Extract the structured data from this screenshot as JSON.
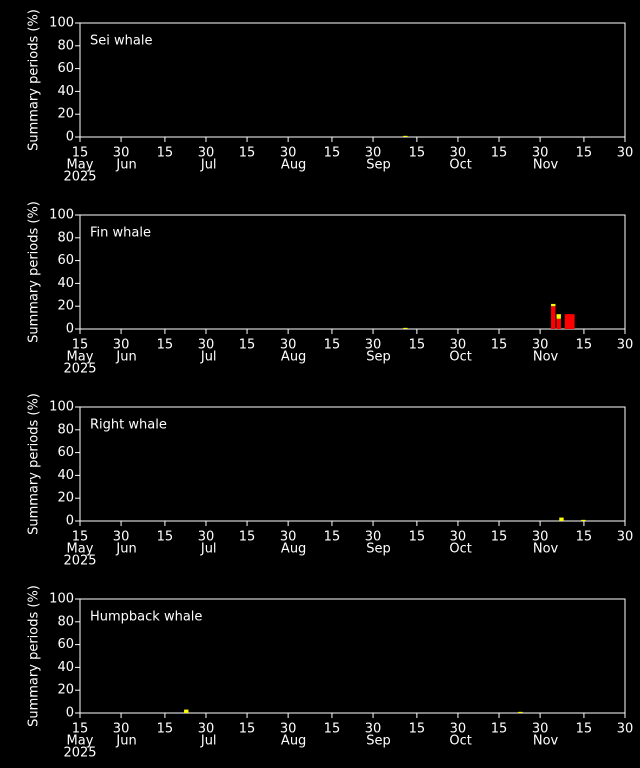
{
  "chart_data": [
    {
      "type": "bar",
      "title": "Sei whale",
      "ylabel": "Summary periods (%)",
      "year_label": "2025",
      "stacked": true,
      "x": [
        "2025-09-10"
      ],
      "series": [
        {
          "color": "#ff0000",
          "values": [
            0
          ]
        },
        {
          "color": "#ffff00",
          "values": [
            1
          ]
        }
      ],
      "xlim": [
        "2025-05-15",
        "2025-11-30"
      ],
      "xticks": [
        {
          "value": "2025-05-15",
          "label": "15"
        },
        {
          "value": "2025-05-30",
          "label": "30"
        },
        {
          "value": "2025-06-15",
          "label": "15"
        },
        {
          "value": "2025-06-30",
          "label": "30"
        },
        {
          "value": "2025-07-15",
          "label": "15"
        },
        {
          "value": "2025-07-30",
          "label": "30"
        },
        {
          "value": "2025-08-15",
          "label": "15"
        },
        {
          "value": "2025-08-30",
          "label": "30"
        },
        {
          "value": "2025-09-15",
          "label": "15"
        },
        {
          "value": "2025-09-30",
          "label": "30"
        },
        {
          "value": "2025-10-15",
          "label": "15"
        },
        {
          "value": "2025-10-30",
          "label": "30"
        },
        {
          "value": "2025-11-15",
          "label": "15"
        },
        {
          "value": "2025-11-30",
          "label": "30"
        }
      ],
      "month_labels": [
        {
          "value": "2025-05-15",
          "label": "May"
        },
        {
          "value": "2025-06-01",
          "label": "Jun"
        },
        {
          "value": "2025-07-01",
          "label": "Jul"
        },
        {
          "value": "2025-08-01",
          "label": "Aug"
        },
        {
          "value": "2025-09-01",
          "label": "Sep"
        },
        {
          "value": "2025-10-01",
          "label": "Oct"
        },
        {
          "value": "2025-11-01",
          "label": "Nov"
        }
      ],
      "ylim": [
        0,
        100
      ],
      "yticks": [
        0,
        20,
        40,
        60,
        80,
        100
      ]
    },
    {
      "type": "bar",
      "title": "Fin whale",
      "ylabel": "Summary periods (%)",
      "year_label": "2025",
      "stacked": true,
      "x": [
        "2025-09-10",
        "2025-11-03",
        "2025-11-05",
        "2025-11-08",
        "2025-11-09",
        "2025-11-10"
      ],
      "series": [
        {
          "color": "#ff0000",
          "values": [
            0,
            20,
            9,
            13,
            13,
            13
          ]
        },
        {
          "color": "#ffff00",
          "values": [
            1,
            2,
            4,
            0,
            0,
            0
          ]
        }
      ],
      "xlim": [
        "2025-05-15",
        "2025-11-30"
      ],
      "xticks": [
        {
          "value": "2025-05-15",
          "label": "15"
        },
        {
          "value": "2025-05-30",
          "label": "30"
        },
        {
          "value": "2025-06-15",
          "label": "15"
        },
        {
          "value": "2025-06-30",
          "label": "30"
        },
        {
          "value": "2025-07-15",
          "label": "15"
        },
        {
          "value": "2025-07-30",
          "label": "30"
        },
        {
          "value": "2025-08-15",
          "label": "15"
        },
        {
          "value": "2025-08-30",
          "label": "30"
        },
        {
          "value": "2025-09-15",
          "label": "15"
        },
        {
          "value": "2025-09-30",
          "label": "30"
        },
        {
          "value": "2025-10-15",
          "label": "15"
        },
        {
          "value": "2025-10-30",
          "label": "30"
        },
        {
          "value": "2025-11-15",
          "label": "15"
        },
        {
          "value": "2025-11-30",
          "label": "30"
        }
      ],
      "month_labels": [
        {
          "value": "2025-05-15",
          "label": "May"
        },
        {
          "value": "2025-06-01",
          "label": "Jun"
        },
        {
          "value": "2025-07-01",
          "label": "Jul"
        },
        {
          "value": "2025-08-01",
          "label": "Aug"
        },
        {
          "value": "2025-09-01",
          "label": "Sep"
        },
        {
          "value": "2025-10-01",
          "label": "Oct"
        },
        {
          "value": "2025-11-01",
          "label": "Nov"
        }
      ],
      "ylim": [
        0,
        100
      ],
      "yticks": [
        0,
        20,
        40,
        60,
        80,
        100
      ]
    },
    {
      "type": "bar",
      "title": "Right whale",
      "ylabel": "Summary periods (%)",
      "year_label": "2025",
      "stacked": true,
      "x": [
        "2025-11-06",
        "2025-11-14"
      ],
      "series": [
        {
          "color": "#ff0000",
          "values": [
            0,
            0
          ]
        },
        {
          "color": "#ffff00",
          "values": [
            3,
            1
          ]
        }
      ],
      "xlim": [
        "2025-05-15",
        "2025-11-30"
      ],
      "xticks": [
        {
          "value": "2025-05-15",
          "label": "15"
        },
        {
          "value": "2025-05-30",
          "label": "30"
        },
        {
          "value": "2025-06-15",
          "label": "15"
        },
        {
          "value": "2025-06-30",
          "label": "30"
        },
        {
          "value": "2025-07-15",
          "label": "15"
        },
        {
          "value": "2025-07-30",
          "label": "30"
        },
        {
          "value": "2025-08-15",
          "label": "15"
        },
        {
          "value": "2025-08-30",
          "label": "30"
        },
        {
          "value": "2025-09-15",
          "label": "15"
        },
        {
          "value": "2025-09-30",
          "label": "30"
        },
        {
          "value": "2025-10-15",
          "label": "15"
        },
        {
          "value": "2025-10-30",
          "label": "30"
        },
        {
          "value": "2025-11-15",
          "label": "15"
        },
        {
          "value": "2025-11-30",
          "label": "30"
        }
      ],
      "month_labels": [
        {
          "value": "2025-05-15",
          "label": "May"
        },
        {
          "value": "2025-06-01",
          "label": "Jun"
        },
        {
          "value": "2025-07-01",
          "label": "Jul"
        },
        {
          "value": "2025-08-01",
          "label": "Aug"
        },
        {
          "value": "2025-09-01",
          "label": "Sep"
        },
        {
          "value": "2025-10-01",
          "label": "Oct"
        },
        {
          "value": "2025-11-01",
          "label": "Nov"
        }
      ],
      "ylim": [
        0,
        100
      ],
      "yticks": [
        0,
        20,
        40,
        60,
        80,
        100
      ]
    },
    {
      "type": "bar",
      "title": "Humpback whale",
      "ylabel": "Summary periods (%)",
      "year_label": "2025",
      "stacked": true,
      "x": [
        "2025-06-22",
        "2025-10-22"
      ],
      "series": [
        {
          "color": "#ff0000",
          "values": [
            0,
            0
          ]
        },
        {
          "color": "#ffff00",
          "values": [
            3,
            1
          ]
        }
      ],
      "xlim": [
        "2025-05-15",
        "2025-11-30"
      ],
      "xticks": [
        {
          "value": "2025-05-15",
          "label": "15"
        },
        {
          "value": "2025-05-30",
          "label": "30"
        },
        {
          "value": "2025-06-15",
          "label": "15"
        },
        {
          "value": "2025-06-30",
          "label": "30"
        },
        {
          "value": "2025-07-15",
          "label": "15"
        },
        {
          "value": "2025-07-30",
          "label": "30"
        },
        {
          "value": "2025-08-15",
          "label": "15"
        },
        {
          "value": "2025-08-30",
          "label": "30"
        },
        {
          "value": "2025-09-15",
          "label": "15"
        },
        {
          "value": "2025-09-30",
          "label": "30"
        },
        {
          "value": "2025-10-15",
          "label": "15"
        },
        {
          "value": "2025-10-30",
          "label": "30"
        },
        {
          "value": "2025-11-15",
          "label": "15"
        },
        {
          "value": "2025-11-30",
          "label": "30"
        }
      ],
      "month_labels": [
        {
          "value": "2025-05-15",
          "label": "May"
        },
        {
          "value": "2025-06-01",
          "label": "Jun"
        },
        {
          "value": "2025-07-01",
          "label": "Jul"
        },
        {
          "value": "2025-08-01",
          "label": "Aug"
        },
        {
          "value": "2025-09-01",
          "label": "Sep"
        },
        {
          "value": "2025-10-01",
          "label": "Oct"
        },
        {
          "value": "2025-11-01",
          "label": "Nov"
        }
      ],
      "ylim": [
        0,
        100
      ],
      "yticks": [
        0,
        20,
        40,
        60,
        80,
        100
      ]
    }
  ]
}
